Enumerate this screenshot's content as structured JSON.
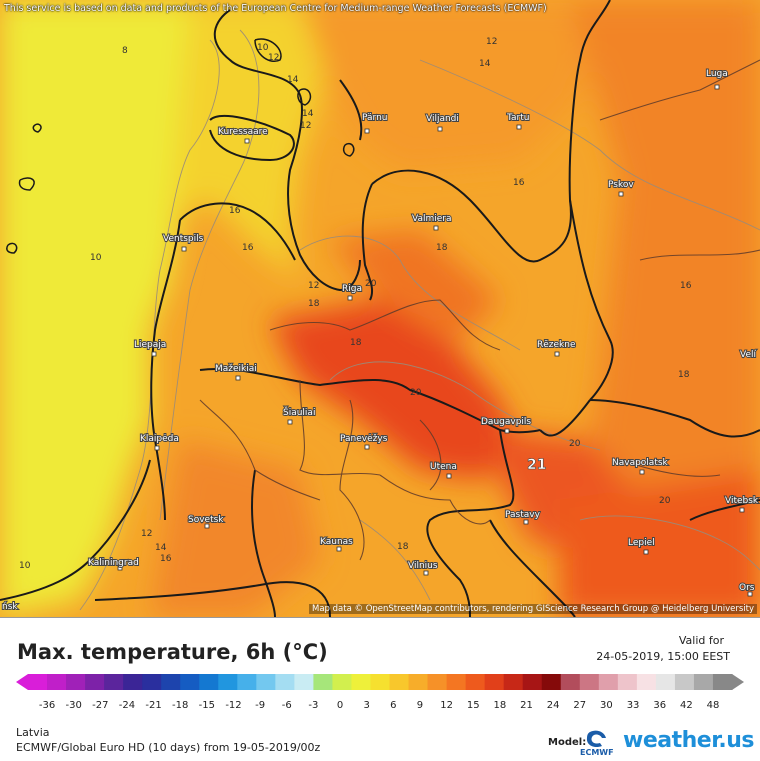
{
  "disclaimer": "This service is based on data and products of the European Centre for Medium-range Weather Forecasts (ECMWF)",
  "attribution": "Map data © OpenStreetMap contributors, rendering GIScience Research Group @ Heidelberg University",
  "cities": [
    {
      "name": "Luga"
    },
    {
      "name": "Kuressaare"
    },
    {
      "name": "Pärnu"
    },
    {
      "name": "Viljandi"
    },
    {
      "name": "Tartu"
    },
    {
      "name": "Pskov"
    },
    {
      "name": "Valmiera"
    },
    {
      "name": "Ventspils"
    },
    {
      "name": "Riga"
    },
    {
      "name": "Liepaja"
    },
    {
      "name": "Rēzekne"
    },
    {
      "name": "Mažeikiai"
    },
    {
      "name": "Velí"
    },
    {
      "name": "Šiauliai"
    },
    {
      "name": "Daugavpils"
    },
    {
      "name": "Klaipėda"
    },
    {
      "name": "Panevėžys"
    },
    {
      "name": "Navapolatsk"
    },
    {
      "name": "Utena"
    },
    {
      "name": "Vitebsk"
    },
    {
      "name": "Sovetsk"
    },
    {
      "name": "Pastavy"
    },
    {
      "name": "Kaunas"
    },
    {
      "name": "Lepiel"
    },
    {
      "name": "Kaliningrad"
    },
    {
      "name": "Vilnius"
    },
    {
      "name": "Ors"
    },
    {
      "name": "ńsk"
    }
  ],
  "isotherm_labels": [
    "12",
    "14",
    "8",
    "10",
    "12",
    "14",
    "12",
    "14",
    "16",
    "10",
    "16",
    "12",
    "18",
    "20",
    "16",
    "18",
    "16",
    "18",
    "20",
    "20",
    "18",
    "12",
    "14",
    "16",
    "10",
    "18",
    "20"
  ],
  "max_value_label": "21",
  "legend": {
    "title": "Max. temperature, 6h (°C)",
    "valid_label": "Valid for",
    "valid_time": "24-05-2019, 15:00 EEST",
    "ticks": [
      "-36",
      "-30",
      "-27",
      "-24",
      "-21",
      "-18",
      "-15",
      "-12",
      "-9",
      "-6",
      "-3",
      "0",
      "3",
      "6",
      "9",
      "12",
      "15",
      "18",
      "21",
      "24",
      "27",
      "30",
      "33",
      "36",
      "42",
      "48"
    ],
    "colors": [
      "#d91ed9",
      "#c01fc9",
      "#a021b8",
      "#7d22a8",
      "#5b259c",
      "#3b2596",
      "#2a2f9e",
      "#1d44ad",
      "#155cc2",
      "#1478d1",
      "#2196df",
      "#46b0ea",
      "#73c8ef",
      "#a4ddf2",
      "#c9ecf3",
      "#a6e67a",
      "#d2ef4e",
      "#eef03a",
      "#f6e02f",
      "#f8c72c",
      "#f7ad2a",
      "#f69128",
      "#f47622",
      "#ee5a1d",
      "#e1401a",
      "#c72817",
      "#a71515",
      "#850a0a",
      "#b24d5c",
      "#cc7684",
      "#e09fab",
      "#eec4cb",
      "#f7e1e4",
      "#e6e6e6",
      "#c8c8c8",
      "#a8a8a8",
      "#888888"
    ]
  },
  "footer": {
    "region": "Latvia",
    "model_run": "ECMWF/Global Euro HD (10 days) from 19-05-2019/00z",
    "model_label": "Model:",
    "ecmwf_logo_text": "ECMWF",
    "brand": "weather.us"
  }
}
